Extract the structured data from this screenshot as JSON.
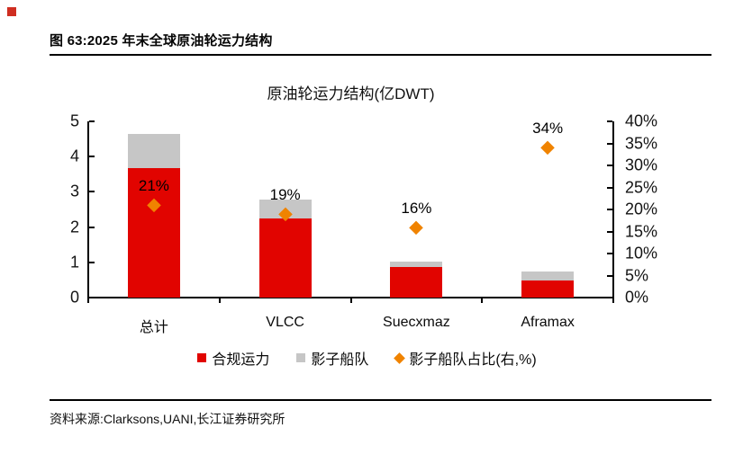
{
  "page": {
    "figure_caption": "图 63:2025 年末全球原油轮运力结构",
    "source_note": "资料来源:Clarksons,UANI,长江证券研究所"
  },
  "chart_data": {
    "type": "bar",
    "title": "原油轮运力结构(亿DWT)",
    "categories": [
      "总计",
      "VLCC",
      "Suecxmaz",
      "Aframax"
    ],
    "series": [
      {
        "name": "合规运力",
        "type": "stacked-bar",
        "axis": "left",
        "color": "#e10400",
        "values": [
          3.67,
          2.24,
          0.87,
          0.49
        ]
      },
      {
        "name": "影子船队",
        "type": "stacked-bar",
        "axis": "left",
        "color": "#c6c6c6",
        "values": [
          0.97,
          0.54,
          0.16,
          0.25
        ]
      },
      {
        "name": "影子船队占比(右,%)",
        "type": "scatter",
        "marker": "diamond",
        "axis": "right",
        "color": "#f08300",
        "values": [
          21,
          19,
          16,
          34
        ]
      }
    ],
    "point_labels": [
      "21%",
      "19%",
      "16%",
      "34%"
    ],
    "left_axis": {
      "min": 0,
      "max": 5,
      "tick_labels": [
        "5",
        "4",
        "3",
        "2",
        "1",
        "0"
      ]
    },
    "right_axis": {
      "min": "0%",
      "max": "40%",
      "tick_labels": [
        "40%",
        "35%",
        "30%",
        "25%",
        "20%",
        "15%",
        "10%",
        "5%",
        "0%"
      ]
    },
    "legend": [
      {
        "label": "合规运力",
        "marker": "square",
        "color": "#e10400"
      },
      {
        "label": "影子船队",
        "marker": "square",
        "color": "#c6c6c6"
      },
      {
        "label": "影子船队占比(右,%)",
        "marker": "diamond",
        "color": "#f08300"
      }
    ],
    "grid": false,
    "legend_position": "bottom"
  }
}
